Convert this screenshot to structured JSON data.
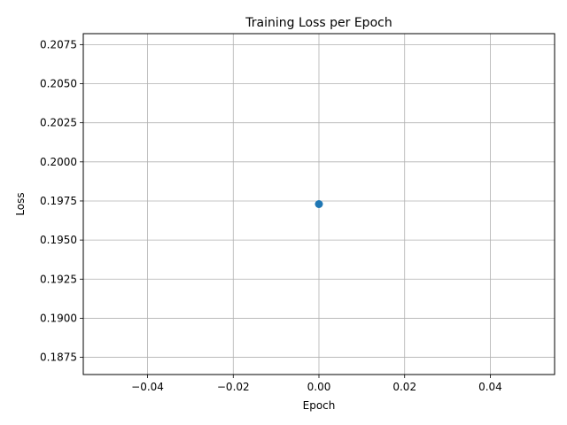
{
  "chart_data": {
    "type": "line",
    "title": "Training Loss per Epoch",
    "xlabel": "Epoch",
    "ylabel": "Loss",
    "xlim": [
      -0.055,
      0.055
    ],
    "ylim": [
      0.1864,
      0.2082
    ],
    "xticks": [
      -0.04,
      -0.02,
      0.0,
      0.02,
      0.04
    ],
    "xtick_labels": [
      "−0.04",
      "−0.02",
      "0.00",
      "0.02",
      "0.04"
    ],
    "yticks": [
      0.1875,
      0.19,
      0.1925,
      0.195,
      0.1975,
      0.2,
      0.2025,
      0.205,
      0.2075
    ],
    "ytick_labels": [
      "0.1875",
      "0.1900",
      "0.1925",
      "0.1950",
      "0.1975",
      "0.2000",
      "0.2025",
      "0.2050",
      "0.2075"
    ],
    "grid": true,
    "series": [
      {
        "color": "#1f77b4",
        "marker": "circle",
        "x": [
          0
        ],
        "y": [
          0.1973
        ]
      }
    ]
  }
}
